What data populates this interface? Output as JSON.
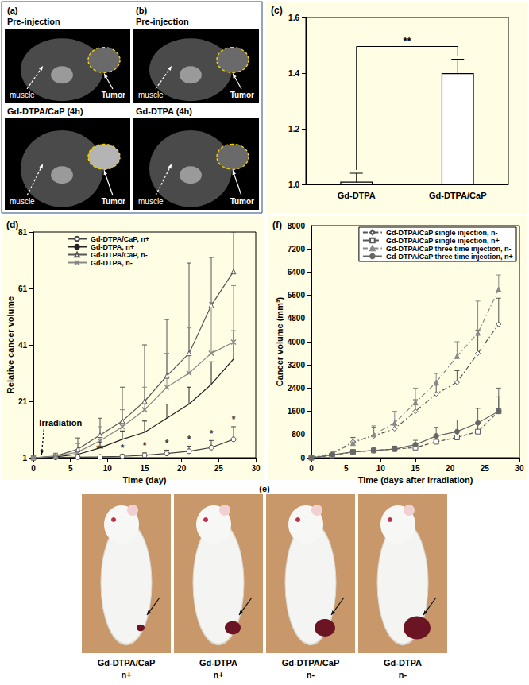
{
  "image_panels": [
    {
      "label": "(a)",
      "frames": [
        {
          "title": "Pre-injection",
          "annotations": [
            "muscle",
            "Tumor"
          ]
        },
        {
          "title": "Gd-DTPA/CaP (4h)",
          "annotations": [
            "muscle",
            "Tumor"
          ]
        }
      ]
    },
    {
      "label": "(b)",
      "frames": [
        {
          "title": "Pre-injection",
          "annotations": [
            "muscle",
            "Tumor"
          ]
        },
        {
          "title": "Gd-DTPA (4h)",
          "annotations": [
            "muscle",
            "Tumor"
          ]
        }
      ]
    }
  ],
  "chart_data": [
    {
      "panel_label": "(c)",
      "type": "bar",
      "categories": [
        "Gd-DTPA",
        "Gd-DTPA/CaP"
      ],
      "values": [
        1.01,
        1.4
      ],
      "errors": [
        0.03,
        0.05
      ],
      "color": "#ffffff",
      "ylim": [
        1,
        1.6
      ],
      "yticks": [
        {
          "value": 1,
          "label": "1.0"
        },
        {
          "value": 1.2,
          "label": "1.2"
        },
        {
          "value": 1.4,
          "label": "1.4"
        },
        {
          "value": 1.6,
          "label": "1.6"
        }
      ],
      "grid": false,
      "significance": {
        "text": "**",
        "between": [
          "Gd-DTPA",
          "Gd-DTPA/CaP"
        ]
      }
    },
    {
      "panel_label": "(d)",
      "type": "line",
      "x_label": "Time (day)",
      "y_label": "Relative cancer volume",
      "xlim": [
        0,
        30
      ],
      "xticks": [
        0,
        5,
        10,
        15,
        20,
        25,
        30
      ],
      "ylim": [
        1,
        81
      ],
      "yticks": [
        1,
        21,
        41,
        61,
        81
      ],
      "grid": false,
      "legend": "upper left",
      "event": {
        "text": "Irradiation",
        "x": 1
      },
      "x": [
        0,
        3,
        6,
        9,
        12,
        15,
        18,
        21,
        24,
        27
      ],
      "series": [
        {
          "name": "Gd-DTPA/CaP, n+",
          "color": "#444444",
          "marker": "circle_open",
          "line_style": "solid",
          "values": [
            1,
            1.1,
            1.2,
            1.3,
            1.5,
            1.9,
            2.5,
            3.3,
            4.6,
            7.5
          ],
          "errors": [
            0,
            0.2,
            0.3,
            0.5,
            0.6,
            0.8,
            1.2,
            1.8,
            2.5,
            4.5
          ],
          "significance": [
            null,
            null,
            null,
            "**",
            "*",
            "*",
            "*",
            "*",
            "*",
            "*"
          ]
        },
        {
          "name": "Gd-DTPA, n+",
          "color": "#222222",
          "marker": "none",
          "line_style": "solid",
          "values": [
            1,
            1.3,
            2.2,
            4.5,
            7.5,
            10,
            15,
            20,
            27,
            36
          ],
          "errors": [
            0,
            0.5,
            1,
            2,
            3,
            4,
            5,
            6,
            8,
            10
          ]
        },
        {
          "name": "Gd-DTPA/CaP, n-",
          "color": "#555555",
          "marker": "triangle_open",
          "line_style": "solid",
          "values": [
            1,
            1.6,
            4,
            9,
            14,
            21,
            30,
            38,
            55,
            67
          ],
          "errors": [
            0,
            1,
            4,
            6,
            12,
            20,
            20,
            32,
            17,
            14
          ]
        },
        {
          "name": "Gd-DTPA, n-",
          "color": "#888888",
          "marker": "x",
          "line_style": "solid",
          "values": [
            1,
            1.5,
            3,
            7,
            12,
            18,
            26,
            31,
            38,
            42
          ],
          "errors": [
            0,
            1,
            3,
            5,
            6,
            8,
            12,
            16,
            18,
            20
          ]
        }
      ]
    },
    {
      "panel_label": "(f)",
      "type": "line",
      "x_label": "Time (days after irradiation)",
      "y_label": "Cancer volume (mm³)",
      "xlim": [
        0,
        30
      ],
      "xticks": [
        0,
        5,
        10,
        15,
        20,
        25,
        30
      ],
      "ylim": [
        0,
        8000
      ],
      "yticks": [
        0,
        800,
        1600,
        2400,
        3200,
        4000,
        4800,
        5600,
        6400,
        7200,
        8000
      ],
      "grid": false,
      "legend": "upper right",
      "x": [
        0,
        3,
        6,
        9,
        12,
        15,
        18,
        21,
        24,
        27
      ],
      "series": [
        {
          "name": "Gd-DTPA/CaP single injection, n-",
          "color": "#555555",
          "marker": "diamond_open",
          "line_style": "dashdot",
          "values": [
            0,
            150,
            550,
            750,
            1000,
            1600,
            2200,
            2600,
            3600,
            4600
          ],
          "errors": [
            0,
            80,
            150,
            300,
            300,
            400,
            300,
            400,
            800,
            900
          ]
        },
        {
          "name": "Gd-DTPA/CaP single injection, n+",
          "color": "#555555",
          "marker": "square_open",
          "line_style": "dashed",
          "values": [
            0,
            80,
            200,
            250,
            300,
            350,
            550,
            700,
            900,
            1600
          ],
          "errors": [
            0,
            40,
            60,
            60,
            80,
            100,
            150,
            200,
            300,
            500
          ]
        },
        {
          "name": "Gd-DTPA/CaP three time injection, n-",
          "color": "#888888",
          "marker": "triangle",
          "line_style": "dashdot",
          "values": [
            0,
            150,
            500,
            800,
            1200,
            1900,
            2600,
            3500,
            4300,
            5800
          ],
          "errors": [
            0,
            80,
            150,
            300,
            400,
            500,
            300,
            500,
            1100,
            500
          ]
        },
        {
          "name": "Gd-DTPA/CaP three time injection, n+",
          "color": "#666666",
          "marker": "circle",
          "line_style": "solid",
          "values": [
            0,
            100,
            200,
            250,
            300,
            450,
            750,
            900,
            1200,
            1600
          ],
          "errors": [
            0,
            50,
            60,
            80,
            100,
            150,
            300,
            400,
            500,
            800
          ]
        }
      ]
    }
  ],
  "photo_panel": {
    "label": "(e)",
    "photos": [
      {
        "caption": [
          "Gd-DTPA/CaP",
          "n+"
        ]
      },
      {
        "caption": [
          "Gd-DTPA",
          "n+"
        ]
      },
      {
        "caption": [
          "Gd-DTPA/CaP",
          "n-"
        ]
      },
      {
        "caption": [
          "Gd-DTPA",
          "n-"
        ]
      }
    ]
  }
}
